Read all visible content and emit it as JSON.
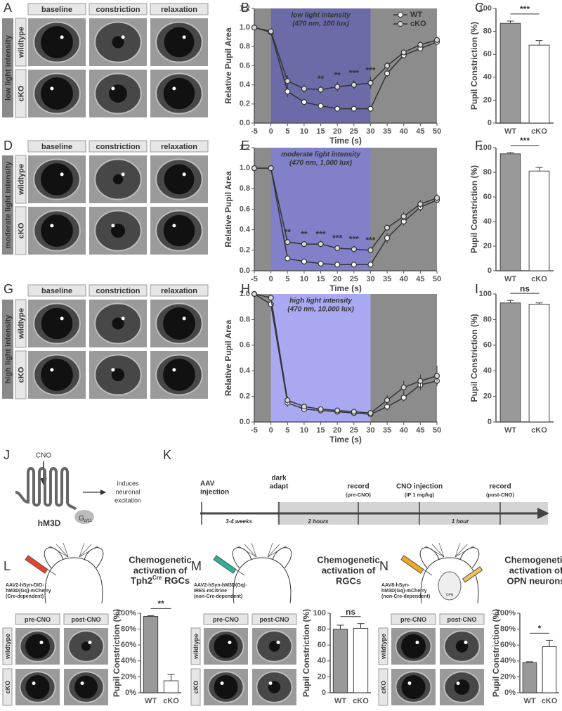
{
  "panel_letters": [
    "A",
    "B",
    "C",
    "D",
    "E",
    "F",
    "G",
    "H",
    "I",
    "J",
    "K",
    "L",
    "M",
    "N"
  ],
  "photo_panels": [
    {
      "side_label": "low light intensity",
      "columns": [
        "baseline",
        "constriction",
        "relaxation"
      ],
      "rows": [
        "wildtype",
        "cKO"
      ]
    },
    {
      "side_label": "moderate light intensity",
      "columns": [
        "baseline",
        "constriction",
        "relaxation"
      ],
      "rows": [
        "wildtype",
        "cKO"
      ]
    },
    {
      "side_label": "high light intensity",
      "columns": [
        "baseline",
        "constriction",
        "relaxation"
      ],
      "rows": [
        "wildtype",
        "cKO"
      ]
    },
    {
      "columns": [
        "pre-CNO",
        "post-CNO"
      ],
      "rows": [
        "wildtype",
        "cKO"
      ]
    },
    {
      "columns": [
        "pre-CNO",
        "post-CNO"
      ],
      "rows": [
        "wildtype",
        "cKO"
      ]
    },
    {
      "columns": [
        "pre-CNO",
        "post-CNO"
      ],
      "rows": [
        "wildtype",
        "cKO"
      ]
    }
  ],
  "chart_data": [
    {
      "type": "line",
      "xlabel": "Time (s)",
      "ylabel": "Relative Pupil Area",
      "x": [
        -5,
        0,
        5,
        10,
        15,
        20,
        25,
        30,
        35,
        40,
        45,
        50
      ],
      "xlim": [
        -5,
        50
      ],
      "xticks": [
        -5,
        0,
        5,
        10,
        15,
        20,
        25,
        30,
        35,
        40,
        45,
        50
      ],
      "ylim": [
        0,
        1.2
      ],
      "yticks": [
        {
          "value": 0,
          "label": "0.0"
        },
        0.2,
        0.4,
        0.6,
        0.8,
        {
          "value": 1,
          "label": "1.0"
        },
        1.2
      ],
      "shade": {
        "x": [
          0,
          30
        ],
        "color": "#6b6ba8",
        "label": [
          "low light intensity",
          "(470 nm, 100 lux)"
        ]
      },
      "background": "#8c8c8c",
      "legend": "upper right",
      "series": [
        {
          "name": "WT",
          "color": "#333333",
          "marker": "#ffffff",
          "values": [
            1.0,
            0.95,
            0.33,
            0.22,
            0.18,
            0.15,
            0.15,
            0.15,
            0.52,
            0.71,
            0.78,
            0.85
          ],
          "errors": [
            0,
            0.02,
            0.06,
            0.03,
            0.02,
            0.02,
            0.02,
            0.02,
            0.04,
            0.03,
            0.03,
            0.03
          ]
        },
        {
          "name": "cKO",
          "color": "#333333",
          "marker": "#d9d9d9",
          "values": [
            1.0,
            0.96,
            0.44,
            0.36,
            0.35,
            0.38,
            0.4,
            0.42,
            0.6,
            0.74,
            0.82,
            0.87
          ],
          "errors": [
            0,
            0.02,
            0.06,
            0.04,
            0.04,
            0.05,
            0.05,
            0.06,
            0.04,
            0.03,
            0.03,
            0.03
          ]
        }
      ],
      "annotations": [
        {
          "x": 15,
          "text": "**"
        },
        {
          "x": 20,
          "text": "**"
        },
        {
          "x": 25,
          "text": "***"
        },
        {
          "x": 30,
          "text": "***"
        }
      ]
    },
    {
      "type": "line",
      "xlabel": "Time (s)",
      "ylabel": "Relative Pupil Area",
      "x": [
        -5,
        0,
        5,
        10,
        15,
        20,
        25,
        30,
        35,
        40,
        45,
        50
      ],
      "xlim": [
        -5,
        50
      ],
      "xticks": [
        -5,
        0,
        5,
        10,
        15,
        20,
        25,
        30,
        35,
        40,
        45,
        50
      ],
      "ylim": [
        0,
        1.2
      ],
      "yticks": [
        {
          "value": 0,
          "label": "0.0"
        },
        0.2,
        0.4,
        0.6,
        0.8,
        {
          "value": 1,
          "label": "1.0"
        },
        1.2
      ],
      "shade": {
        "x": [
          0,
          30
        ],
        "color": "#8181c9",
        "label": [
          "moderate light intensity",
          "(470 nm, 1,000 lux)"
        ]
      },
      "background": "#8c8c8c",
      "series": [
        {
          "name": "WT",
          "color": "#333333",
          "marker": "#ffffff",
          "values": [
            1.0,
            1.0,
            0.12,
            0.09,
            0.07,
            0.06,
            0.06,
            0.06,
            0.32,
            0.48,
            0.62,
            0.69
          ],
          "errors": [
            0,
            0.02,
            0.02,
            0.01,
            0.01,
            0.01,
            0.01,
            0.01,
            0.05,
            0.04,
            0.04,
            0.03
          ]
        },
        {
          "name": "cKO",
          "color": "#333333",
          "marker": "#d9d9d9",
          "values": [
            1.0,
            1.0,
            0.28,
            0.26,
            0.26,
            0.22,
            0.21,
            0.2,
            0.42,
            0.53,
            0.65,
            0.71
          ],
          "errors": [
            0,
            0.02,
            0.03,
            0.03,
            0.03,
            0.03,
            0.03,
            0.03,
            0.03,
            0.04,
            0.04,
            0.04
          ]
        }
      ],
      "annotations": [
        {
          "x": 5,
          "text": "**"
        },
        {
          "x": 10,
          "text": "**"
        },
        {
          "x": 15,
          "text": "***"
        },
        {
          "x": 20,
          "text": "***"
        },
        {
          "x": 25,
          "text": "***"
        },
        {
          "x": 30,
          "text": "***"
        }
      ]
    },
    {
      "type": "line",
      "xlabel": "Time (s)",
      "ylabel": "Relative Pupil Area",
      "x": [
        -5,
        0,
        5,
        10,
        15,
        20,
        25,
        30,
        35,
        40,
        45,
        50
      ],
      "xlim": [
        -5,
        50
      ],
      "xticks": [
        -5,
        0,
        5,
        10,
        15,
        20,
        25,
        30,
        35,
        40,
        45,
        50
      ],
      "ylim": [
        0,
        1
      ],
      "yticks": [
        {
          "value": 0,
          "label": "0.0"
        },
        0.2,
        0.4,
        0.6,
        0.8,
        {
          "value": 1,
          "label": "1.0"
        }
      ],
      "shade": {
        "x": [
          0,
          30
        ],
        "color": "#a9a9f2",
        "label": [
          "high light intensity",
          "(470 nm, 10,000 lux)"
        ]
      },
      "background": "#8c8c8c",
      "series": [
        {
          "name": "WT",
          "color": "#333333",
          "marker": "#ffffff",
          "values": [
            1.0,
            0.92,
            0.15,
            0.1,
            0.09,
            0.08,
            0.07,
            0.06,
            0.12,
            0.19,
            0.29,
            0.32
          ],
          "errors": [
            0,
            0.02,
            0.03,
            0.02,
            0.02,
            0.02,
            0.02,
            0.02,
            0.03,
            0.03,
            0.04,
            0.04
          ]
        },
        {
          "name": "cKO",
          "color": "#333333",
          "marker": "#d9d9d9",
          "values": [
            1.0,
            0.97,
            0.17,
            0.12,
            0.1,
            0.09,
            0.08,
            0.07,
            0.17,
            0.27,
            0.32,
            0.36
          ],
          "errors": [
            0,
            0.02,
            0.03,
            0.02,
            0.02,
            0.02,
            0.02,
            0.02,
            0.04,
            0.05,
            0.05,
            0.08
          ]
        }
      ],
      "annotations": []
    },
    {
      "type": "bar",
      "ylabel": "Pupil Constriction (%)",
      "categories": [
        "WT",
        "cKO"
      ],
      "values": [
        87,
        68
      ],
      "errors": [
        2,
        4
      ],
      "colors": [
        "#999999",
        "#ffffff"
      ],
      "ylim": [
        0,
        100
      ],
      "yticks": [
        0,
        20,
        40,
        60,
        80,
        100
      ],
      "significance": "***"
    },
    {
      "type": "bar",
      "ylabel": "Pupil Constriction (%)",
      "categories": [
        "WT",
        "cKO"
      ],
      "values": [
        95,
        81
      ],
      "errors": [
        1,
        3
      ],
      "colors": [
        "#999999",
        "#ffffff"
      ],
      "ylim": [
        0,
        100
      ],
      "yticks": [
        0,
        20,
        40,
        60,
        80,
        100
      ],
      "significance": "***"
    },
    {
      "type": "bar",
      "ylabel": "Pupil Constriction (%)",
      "categories": [
        "WT",
        "cKO"
      ],
      "values": [
        93,
        92
      ],
      "errors": [
        2,
        1
      ],
      "colors": [
        "#999999",
        "#ffffff"
      ],
      "ylim": [
        0,
        100
      ],
      "yticks": [
        0,
        20,
        40,
        60,
        80,
        100
      ],
      "significance": "ns"
    },
    {
      "type": "bar",
      "ylabel": "Pupil Constriction (%)",
      "categories": [
        "WT",
        "cKO"
      ],
      "values": [
        96,
        15
      ],
      "errors": [
        1,
        8
      ],
      "colors": [
        "#999999",
        "#ffffff"
      ],
      "ylim": [
        0,
        100
      ],
      "yticks": [
        {
          "value": 0,
          "label": "0%"
        },
        {
          "value": 20,
          "label": "20%"
        },
        {
          "value": 40,
          "label": "40%"
        },
        {
          "value": 60,
          "label": "60%"
        },
        {
          "value": 80,
          "label": "80%"
        },
        {
          "value": 100,
          "label": "100%"
        }
      ],
      "significance": "**"
    },
    {
      "type": "bar",
      "ylabel": "Pupil Constriction (%)",
      "categories": [
        "WT",
        "cKO"
      ],
      "values": [
        80,
        81
      ],
      "errors": [
        5,
        6
      ],
      "colors": [
        "#999999",
        "#ffffff"
      ],
      "ylim": [
        0,
        100
      ],
      "yticks": [
        0,
        20,
        40,
        60,
        80,
        100
      ],
      "significance": "ns"
    },
    {
      "type": "bar",
      "ylabel": "Pupil Constriction (%)",
      "categories": [
        "WT",
        "cKO"
      ],
      "values": [
        38,
        58
      ],
      "errors": [
        1,
        8
      ],
      "colors": [
        "#999999",
        "#ffffff"
      ],
      "ylim": [
        0,
        100
      ],
      "yticks": [
        {
          "value": 0,
          "label": "0%"
        },
        {
          "value": 20,
          "label": "20%"
        },
        {
          "value": 40,
          "label": "40%"
        },
        {
          "value": 60,
          "label": "60%"
        },
        {
          "value": 80,
          "label": "80%"
        },
        {
          "value": 100,
          "label": "100%"
        }
      ],
      "significance": "*"
    }
  ],
  "diagram_j": {
    "ligand": "CNO",
    "receptor": "hM3D",
    "g_protein": "G",
    "g_subscript": "q/11",
    "effect": [
      "induces",
      "neuronal",
      "excitation"
    ]
  },
  "timeline_k": {
    "events": [
      {
        "lines": [
          "AAV",
          "injection"
        ]
      },
      {
        "lines": [
          "dark",
          "adapt"
        ]
      },
      {
        "lines": [
          "record"
        ],
        "note": "(pre-CNO)"
      },
      {
        "lines": [
          "CNO injection"
        ],
        "note": "(IP 1 mg/kg)"
      },
      {
        "lines": [
          "record"
        ],
        "note": "(post-CNO)"
      }
    ],
    "durations": [
      "3-4 weeks",
      "2 hours",
      "1 hour"
    ]
  },
  "chemogenetic": [
    {
      "construct": [
        "AAV2-hSyn-DIO-",
        "hM3D(Gq)-mCherry",
        "(Cre-dependent)"
      ],
      "construct_color": "#e8412c",
      "title": [
        "Chemogenetic",
        "activation of"
      ],
      "title_last": [
        "Tph2",
        "Cre",
        " RGCs"
      ]
    },
    {
      "construct": [
        "AAV2-hSyn-hM3D(Gq)-",
        "IRES-mCitrine",
        "(non-Cre-dependent)"
      ],
      "construct_color": "#2bb39a",
      "title": [
        "Chemogenetic",
        "activation of",
        "RGCs"
      ]
    },
    {
      "construct": [
        "AAV8-hSyn-",
        "hM3D(Gq)-mCherry",
        "(non-Cre-dependent)"
      ],
      "construct_color": "#f0a81e",
      "title": [
        "Chemogenetic",
        "activation of",
        "OPN neurons"
      ],
      "brain_label": "OPN"
    }
  ]
}
